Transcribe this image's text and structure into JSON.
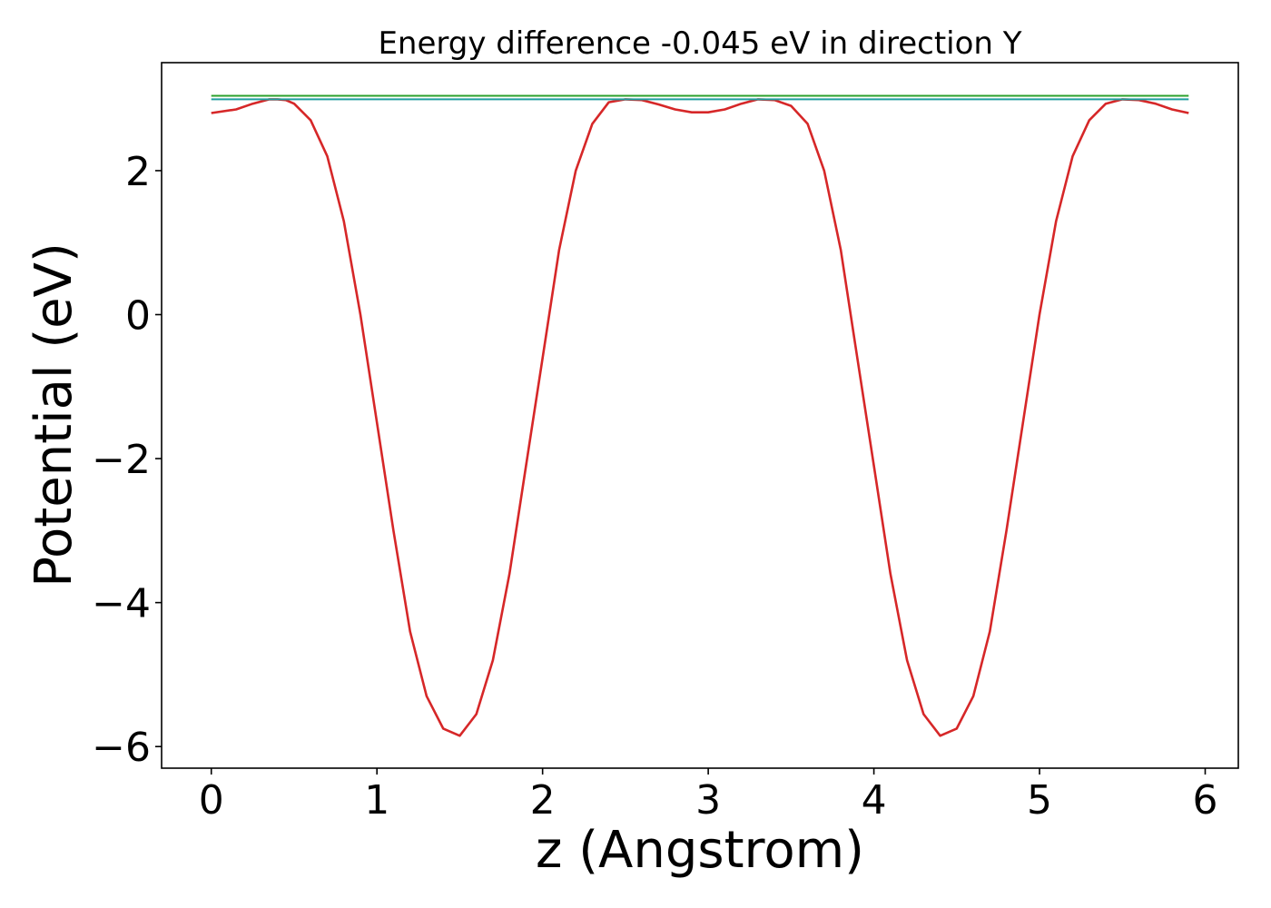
{
  "chart_data": {
    "type": "line",
    "title": "Energy difference -0.045 eV in direction Y",
    "xlabel": "z (Angstrom)",
    "ylabel": "Potential (eV)",
    "xlim": [
      -0.3,
      6.2
    ],
    "ylim": [
      -6.3,
      3.5
    ],
    "xticks": [
      0,
      1,
      2,
      3,
      4,
      5,
      6
    ],
    "yticks": [
      -6,
      -4,
      -2,
      0,
      2
    ],
    "xtick_labels": [
      "0",
      "1",
      "2",
      "3",
      "4",
      "5",
      "6"
    ],
    "ytick_labels": [
      "−6",
      "−4",
      "−2",
      "0",
      "2"
    ],
    "grid": false,
    "legend": "none",
    "series": [
      {
        "color": "#d62728",
        "x": [
          0.0,
          0.15,
          0.25,
          0.35,
          0.4,
          0.45,
          0.5,
          0.6,
          0.7,
          0.8,
          0.9,
          1.0,
          1.1,
          1.2,
          1.3,
          1.4,
          1.5,
          1.6,
          1.7,
          1.8,
          1.9,
          2.0,
          2.1,
          2.2,
          2.3,
          2.4,
          2.5,
          2.6,
          2.7,
          2.8,
          2.9,
          3.0,
          3.1,
          3.2,
          3.3,
          3.4,
          3.5,
          3.6,
          3.7,
          3.8,
          3.9,
          4.0,
          4.1,
          4.2,
          4.3,
          4.4,
          4.5,
          4.6,
          4.7,
          4.8,
          4.9,
          5.0,
          5.1,
          5.2,
          5.3,
          5.4,
          5.5,
          5.6,
          5.7,
          5.8,
          5.9
        ],
        "values": [
          2.8,
          2.85,
          2.93,
          2.99,
          2.99,
          2.98,
          2.93,
          2.7,
          2.2,
          1.3,
          0.0,
          -1.5,
          -3.0,
          -4.4,
          -5.3,
          -5.75,
          -5.85,
          -5.55,
          -4.8,
          -3.6,
          -2.1,
          -0.6,
          0.9,
          2.0,
          2.65,
          2.95,
          2.99,
          2.98,
          2.92,
          2.85,
          2.81,
          2.81,
          2.85,
          2.93,
          2.99,
          2.98,
          2.9,
          2.65,
          2.0,
          0.9,
          -0.6,
          -2.1,
          -3.6,
          -4.8,
          -5.55,
          -5.85,
          -5.75,
          -5.3,
          -4.4,
          -3.0,
          -1.5,
          0.0,
          1.3,
          2.2,
          2.7,
          2.93,
          2.99,
          2.98,
          2.93,
          2.85,
          2.8
        ]
      },
      {
        "color": "#2ca02c",
        "x": [
          0.0,
          5.9
        ],
        "values": [
          3.04,
          3.04
        ]
      },
      {
        "color": "#1f9e9e",
        "x": [
          0.0,
          5.9
        ],
        "values": [
          2.99,
          2.99
        ]
      }
    ]
  }
}
